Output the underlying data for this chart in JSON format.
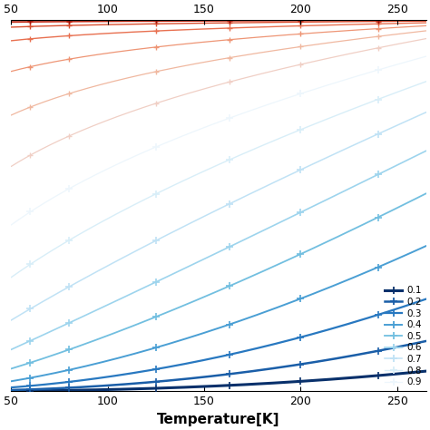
{
  "xlabel": "Temperature[K]",
  "xlim": [
    50,
    265
  ],
  "ylim": [
    0,
    1
  ],
  "x_ticks_bottom": [
    50,
    100,
    150,
    200,
    250
  ],
  "x_ticks_top": [
    50,
    100,
    150,
    200,
    250
  ],
  "marker_x_positions": [
    60,
    80,
    125,
    163,
    200,
    240
  ],
  "blue_curves": [
    {
      "label": "0.1",
      "color": "#08306b",
      "lw": 2.2,
      "A": 1.0,
      "n": 2.5,
      "T_ref": 260,
      "scale": 0.052
    },
    {
      "label": "0.2",
      "color": "#1a5ea8",
      "lw": 1.8,
      "A": 1.0,
      "n": 2.2,
      "T_ref": 260,
      "scale": 0.13
    },
    {
      "label": "0.3",
      "color": "#2878c0",
      "lw": 1.6,
      "A": 1.0,
      "n": 1.9,
      "T_ref": 260,
      "scale": 0.24
    },
    {
      "label": "0.4",
      "color": "#4a9fd4",
      "lw": 1.4,
      "A": 1.0,
      "n": 1.6,
      "T_ref": 260,
      "scale": 0.38
    },
    {
      "label": "0.5",
      "color": "#72bfe0",
      "lw": 1.3,
      "A": 1.0,
      "n": 1.3,
      "T_ref": 260,
      "scale": 0.52
    },
    {
      "label": "0.6",
      "color": "#9dd4ed",
      "lw": 1.2,
      "A": 1.0,
      "n": 1.05,
      "T_ref": 260,
      "scale": 0.635
    },
    {
      "label": "0.7",
      "color": "#c0e2f5",
      "lw": 1.1,
      "A": 1.0,
      "n": 0.82,
      "T_ref": 260,
      "scale": 0.74
    },
    {
      "label": "0.8",
      "color": "#d8eef8",
      "lw": 1.0,
      "A": 1.0,
      "n": 0.6,
      "T_ref": 260,
      "scale": 0.825
    },
    {
      "label": "0.9",
      "color": "#edf6fc",
      "lw": 0.9,
      "A": 1.0,
      "n": 0.42,
      "T_ref": 260,
      "scale": 0.895
    }
  ],
  "red_curves": [
    {
      "color": "#f0cfc5",
      "lw": 0.9,
      "A": 1.0,
      "n": 0.27,
      "T_ref": 260,
      "scale": 0.945
    },
    {
      "color": "#f0b8a0",
      "lw": 0.9,
      "A": 1.0,
      "n": 0.16,
      "T_ref": 260,
      "scale": 0.968
    },
    {
      "color": "#ee9575",
      "lw": 0.9,
      "A": 1.0,
      "n": 0.08,
      "T_ref": 260,
      "scale": 0.983
    },
    {
      "color": "#e87050",
      "lw": 1.0,
      "A": 1.0,
      "n": 0.03,
      "T_ref": 260,
      "scale": 0.992
    },
    {
      "color": "#d94f30",
      "lw": 1.0,
      "A": 1.0,
      "n": 0.01,
      "T_ref": 260,
      "scale": 0.997
    },
    {
      "color": "#c83520",
      "lw": 1.1,
      "A": 1.0,
      "n": 0.003,
      "T_ref": 260,
      "scale": 0.999
    },
    {
      "color": "#b52010",
      "lw": 1.2,
      "A": 1.0,
      "n": 0.001,
      "T_ref": 260,
      "scale": 1.0
    },
    {
      "color": "#9b1008",
      "lw": 1.3,
      "A": 1.0,
      "n": 0.0003,
      "T_ref": 260,
      "scale": 1.0
    }
  ],
  "figsize": [
    4.74,
    4.74
  ],
  "dpi": 100
}
